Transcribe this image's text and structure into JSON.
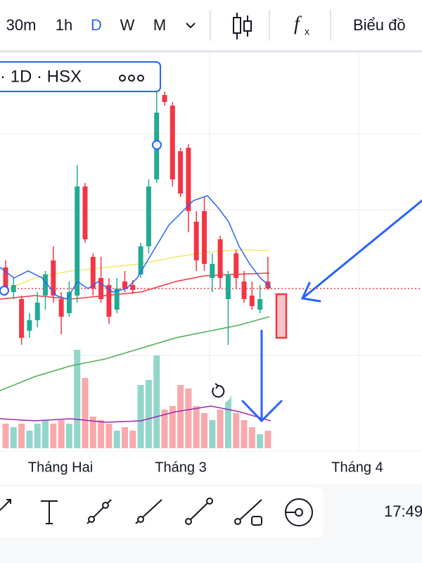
{
  "toolbar": {
    "intervals": [
      "30m",
      "1h",
      "D",
      "W",
      "M"
    ],
    "chart_button": "Biểu đồ"
  },
  "legend": "· 1D · HSX",
  "chart_data": {
    "type": "candlestick",
    "open": [
      26,
      22.5,
      21.5,
      17,
      18.5,
      22,
      27,
      21.5,
      19.5,
      22,
      37.5,
      27.5,
      24.5,
      23.5,
      20,
      24,
      23.5,
      25,
      29,
      38.5,
      50.5,
      49,
      42.5,
      43,
      32.5,
      34,
      24.5,
      30,
      21.5,
      28,
      24,
      22,
      20,
      24
    ],
    "high": [
      27,
      24.5,
      22,
      19.5,
      22.5,
      25.5,
      29,
      22.5,
      24,
      40.5,
      38,
      28,
      27.5,
      24.5,
      24.5,
      25.5,
      24.2,
      29.5,
      38.5,
      51,
      51,
      49.5,
      43,
      43.5,
      34,
      36,
      28,
      30.5,
      25.5,
      28.5,
      25.5,
      24,
      23.5,
      27.5
    ],
    "low": [
      22,
      21.5,
      15,
      16,
      17.5,
      20,
      21,
      16.5,
      19,
      21,
      29.5,
      22,
      21,
      18,
      19.5,
      22.5,
      22.2,
      24.5,
      28,
      38,
      49,
      37.5,
      36,
      31,
      25.5,
      25.5,
      22.5,
      23,
      15,
      23,
      21,
      20,
      19.5,
      22.8
    ],
    "close": [
      22.5,
      23.5,
      16,
      18.5,
      21,
      25,
      22,
      19,
      22.5,
      37.5,
      30,
      23,
      21.5,
      19,
      23,
      23,
      22.8,
      29,
      37.5,
      48,
      49.5,
      38.5,
      36.5,
      34,
      27,
      26.5,
      26.5,
      24.5,
      25,
      24.5,
      21.5,
      20.5,
      21.5,
      23
    ],
    "volume": [
      35,
      30,
      35,
      25,
      35,
      40,
      35,
      40,
      35,
      140,
      100,
      45,
      40,
      35,
      25,
      30,
      25,
      90,
      97,
      132,
      55,
      60,
      90,
      85,
      60,
      50,
      40,
      55,
      77,
      50,
      40,
      30,
      20,
      25
    ],
    "ylim": [
      0,
      56
    ],
    "volume_lim": [
      0,
      560
    ],
    "up_color": "#22ab94",
    "down_color": "#f23645",
    "volume_up_color": "#92d6cb",
    "volume_down_color": "#f8a9ac",
    "x_labels": [
      "Tháng Hai",
      "Tháng 3",
      "Tháng 4"
    ]
  },
  "time": "17:49"
}
